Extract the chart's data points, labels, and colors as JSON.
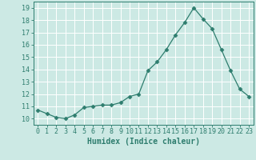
{
  "x": [
    0,
    1,
    2,
    3,
    4,
    5,
    6,
    7,
    8,
    9,
    10,
    11,
    12,
    13,
    14,
    15,
    16,
    17,
    18,
    19,
    20,
    21,
    22,
    23
  ],
  "y": [
    10.7,
    10.4,
    10.1,
    10.0,
    10.3,
    10.9,
    11.0,
    11.1,
    11.1,
    11.3,
    11.8,
    12.0,
    13.9,
    14.6,
    15.6,
    16.8,
    17.8,
    19.0,
    18.1,
    17.3,
    15.6,
    13.9,
    12.4,
    11.8
  ],
  "line_color": "#2e7d6e",
  "marker": "D",
  "marker_size": 2.5,
  "bg_color": "#cce9e4",
  "grid_color": "#ffffff",
  "xlabel": "Humidex (Indice chaleur)",
  "xlim": [
    -0.5,
    23.5
  ],
  "ylim": [
    9.5,
    19.5
  ],
  "yticks": [
    10,
    11,
    12,
    13,
    14,
    15,
    16,
    17,
    18,
    19
  ],
  "xticks": [
    0,
    1,
    2,
    3,
    4,
    5,
    6,
    7,
    8,
    9,
    10,
    11,
    12,
    13,
    14,
    15,
    16,
    17,
    18,
    19,
    20,
    21,
    22,
    23
  ],
  "tick_fontsize": 6,
  "xlabel_fontsize": 7
}
